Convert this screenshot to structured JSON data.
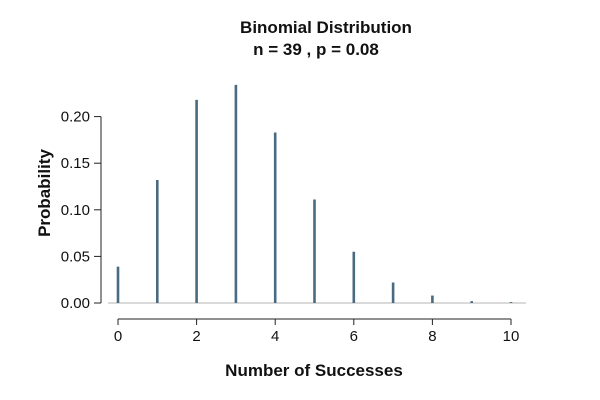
{
  "chart_data": {
    "type": "bar",
    "title": "Binomial Distribution",
    "subtitle": "n = 39 , p = 0.08",
    "xlabel": "Number of Successes",
    "ylabel": "Probability",
    "x": [
      0,
      1,
      2,
      3,
      4,
      5,
      6,
      7,
      8,
      9,
      10
    ],
    "values": [
      0.039,
      0.132,
      0.218,
      0.234,
      0.183,
      0.111,
      0.055,
      0.022,
      0.008,
      0.002,
      0.001
    ],
    "xlim": [
      0,
      10
    ],
    "ylim": [
      0,
      0.25
    ],
    "x_ticks": [
      0,
      2,
      4,
      6,
      8,
      10
    ],
    "x_tick_labels": [
      "0",
      "2",
      "4",
      "6",
      "8",
      "10"
    ],
    "y_ticks": [
      0,
      0.05,
      0.1,
      0.15,
      0.2
    ],
    "y_tick_labels": [
      "0.00",
      "0.05",
      "0.10",
      "0.15",
      "0.20"
    ],
    "grid": false,
    "colors": {
      "bar": "#4a6a82",
      "axis": "#222222",
      "baseline": "#b5b5b5"
    }
  }
}
